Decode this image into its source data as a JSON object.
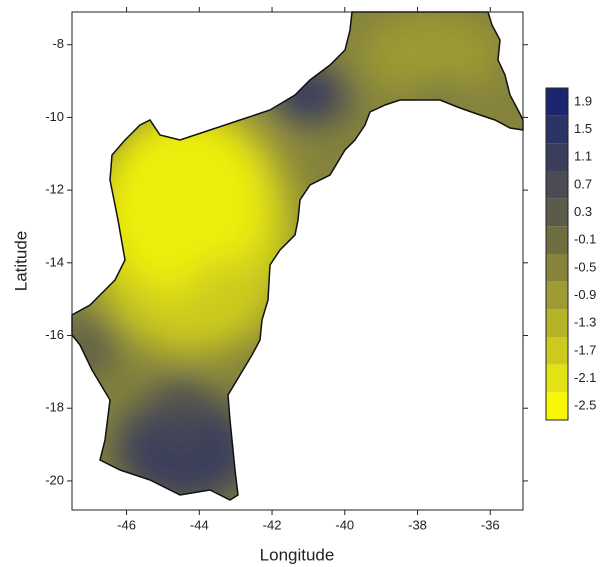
{
  "chart_data": {
    "type": "contour",
    "xlabel": "Longitude",
    "ylabel": "Latitude",
    "xlim": [
      -47.5,
      -35.1
    ],
    "ylim": [
      -20.8,
      -7.1
    ],
    "xticks": [
      -46,
      -44,
      -42,
      -40,
      -38,
      -36
    ],
    "yticks": [
      -8,
      -10,
      -12,
      -14,
      -16,
      -18,
      -20
    ],
    "colorbar": {
      "ticks": [
        1.9,
        1.5,
        1.1,
        0.7,
        0.3,
        -0.1,
        -0.5,
        -0.9,
        -1.3,
        -1.7,
        -2.1,
        -2.5
      ],
      "colors": [
        "#1c2670",
        "#2c3365",
        "#3b3e5b",
        "#4b4b53",
        "#5c5b4a",
        "#6f6d42",
        "#86843a",
        "#9d9b31",
        "#b5b327",
        "#cccb1d",
        "#e3e212",
        "#f8f806"
      ]
    }
  }
}
